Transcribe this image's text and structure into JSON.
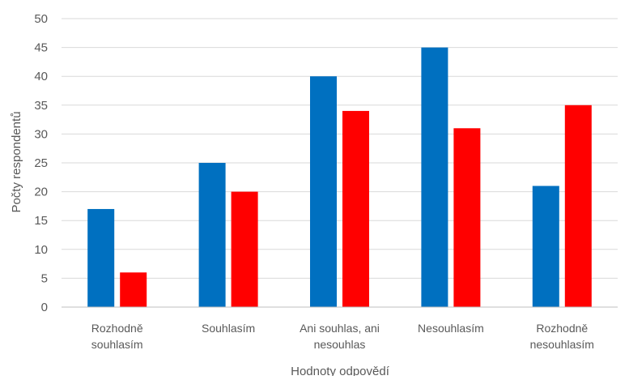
{
  "chart_data": {
    "type": "bar",
    "title": "",
    "xlabel": "Hodnoty odpovědí",
    "ylabel": "Počty respondentů",
    "ylim": [
      0,
      50
    ],
    "yticks": [
      0,
      5,
      10,
      15,
      20,
      25,
      30,
      35,
      40,
      45,
      50
    ],
    "grid": true,
    "legend": "none",
    "categories": [
      [
        "Rozhodně",
        "souhlasím"
      ],
      [
        "Souhlasím"
      ],
      [
        "Ani souhlas, ani",
        "nesouhlas"
      ],
      [
        "Nesouhlasím"
      ],
      [
        "Rozhodně",
        "nesouhlasím"
      ]
    ],
    "series": [
      {
        "color": "#0070C0",
        "values": [
          17,
          25,
          40,
          45,
          21
        ]
      },
      {
        "color": "#FF0000",
        "values": [
          6,
          20,
          34,
          31,
          35
        ]
      }
    ]
  }
}
